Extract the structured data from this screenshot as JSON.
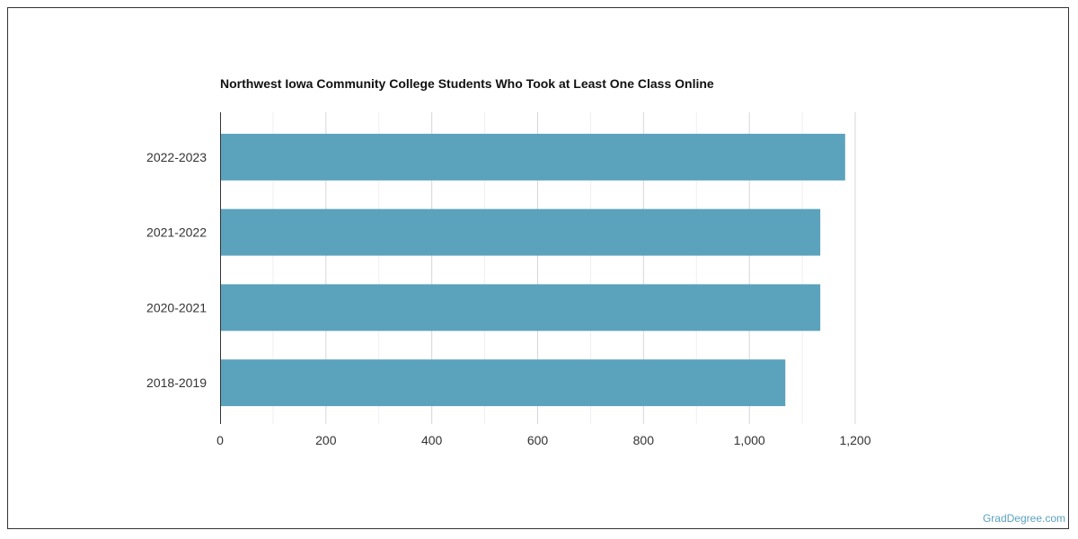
{
  "chart_data": {
    "type": "bar",
    "orientation": "horizontal",
    "title": "Northwest Iowa Community College Students Who Took at Least One Class Online",
    "categories": [
      "2022-2023",
      "2021-2022",
      "2020-2021",
      "2018-2019"
    ],
    "values": [
      1181,
      1134,
      1134,
      1068
    ],
    "xlim": [
      0,
      1200
    ],
    "x_ticks": [
      0,
      200,
      400,
      600,
      800,
      1000,
      1200
    ],
    "x_tick_labels": [
      "0",
      "200",
      "400",
      "600",
      "800",
      "1,000",
      "1,200"
    ],
    "xlabel": "",
    "ylabel": "",
    "grid": true,
    "bar_color": "#5ba2bd"
  },
  "credit": "GradDegree.com"
}
